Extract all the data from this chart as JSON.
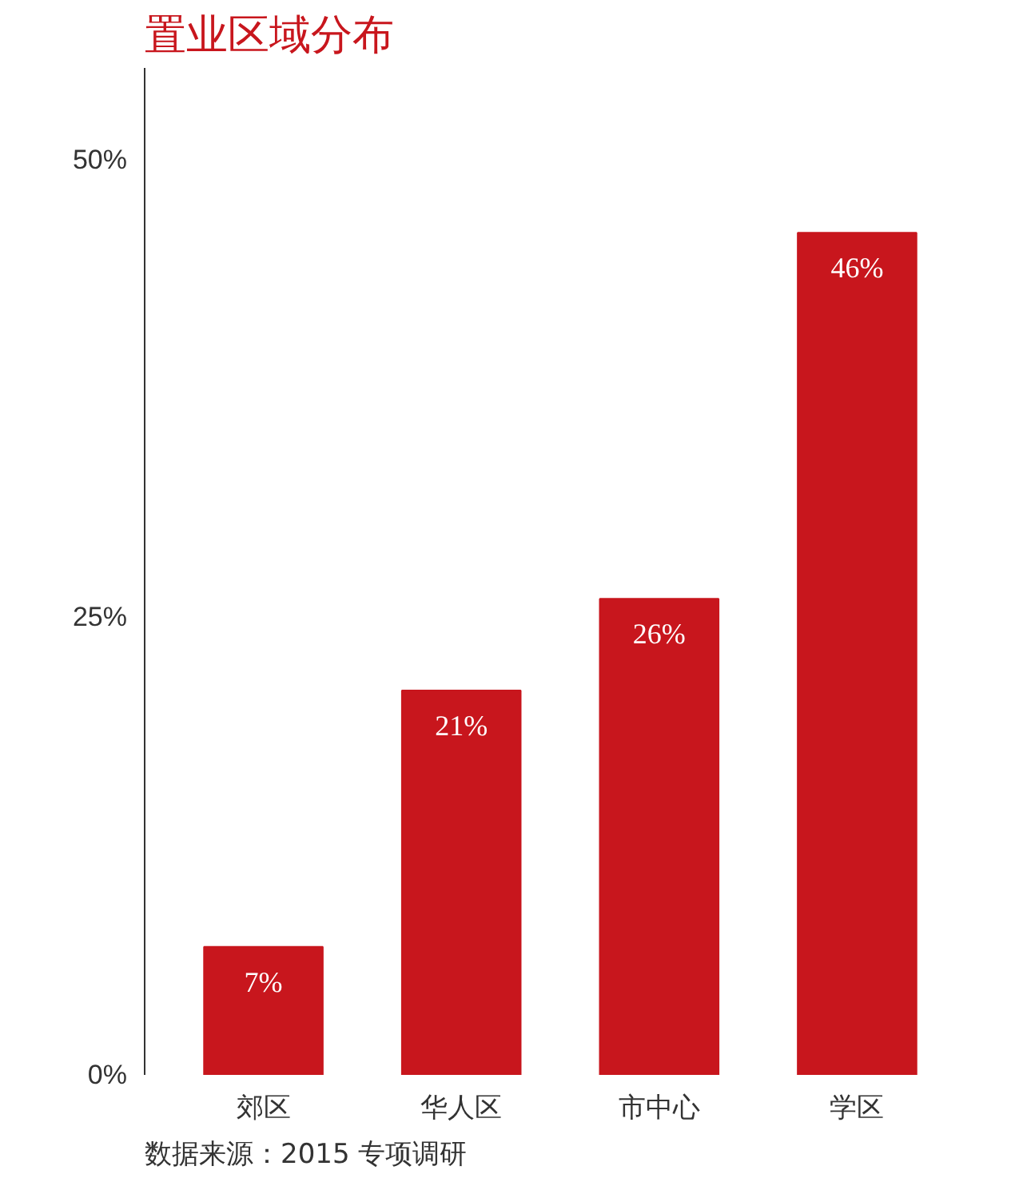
{
  "chart_data": {
    "type": "bar",
    "title": "置业区域分布",
    "categories": [
      "郊区",
      "华人区",
      "市中心",
      "学区"
    ],
    "values": [
      7,
      21,
      26,
      46
    ],
    "color": "#c8161d",
    "value_labels": [
      "7%",
      "21%",
      "26%",
      "46%"
    ],
    "ylim": [
      0,
      55
    ],
    "yticks": [
      {
        "value": 0,
        "label": "0%"
      },
      {
        "value": 25,
        "label": "25%"
      },
      {
        "value": 50,
        "label": "50%"
      }
    ],
    "grid": false,
    "annotations": [
      "数据来源：2015 专项调研"
    ]
  }
}
